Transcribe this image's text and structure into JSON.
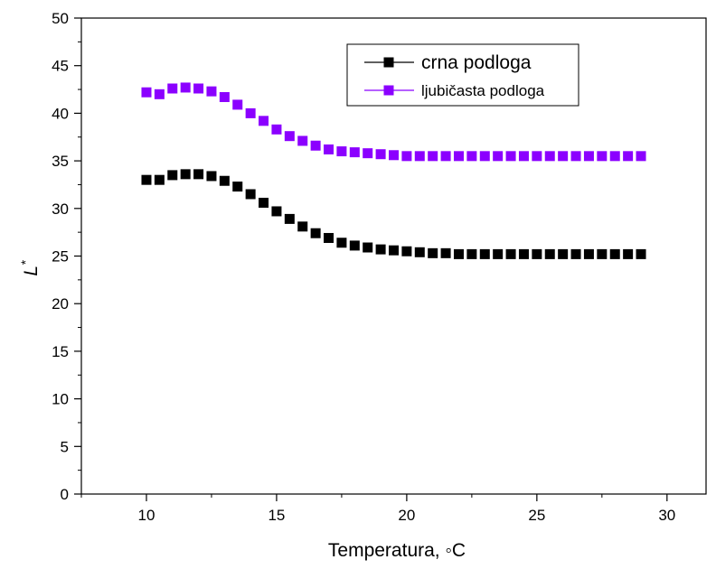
{
  "chart_data": {
    "type": "scatter",
    "title": "",
    "xlabel": "Temperatura, ◦C",
    "ylabel_main": "L",
    "ylabel_sup": "*",
    "xlim": [
      7.5,
      31.5
    ],
    "ylim": [
      0,
      50
    ],
    "x_ticks": [
      10,
      15,
      20,
      25,
      30
    ],
    "y_ticks": [
      0,
      5,
      10,
      15,
      20,
      25,
      30,
      35,
      40,
      45,
      50
    ],
    "grid": false,
    "legend_position": "top-right",
    "x": [
      10,
      10.5,
      11,
      11.5,
      12,
      12.5,
      13,
      13.5,
      14,
      14.5,
      15,
      15.5,
      16,
      16.5,
      17,
      17.5,
      18,
      18.5,
      19,
      19.5,
      20,
      20.5,
      21,
      21.5,
      22,
      22.5,
      23,
      23.5,
      24,
      24.5,
      25,
      25.5,
      26,
      26.5,
      27,
      27.5,
      28,
      28.5,
      29
    ],
    "series": [
      {
        "name": "crna podloga",
        "color": "#000000",
        "values": [
          33.0,
          33.0,
          33.5,
          33.6,
          33.6,
          33.4,
          32.9,
          32.3,
          31.5,
          30.6,
          29.7,
          28.9,
          28.1,
          27.4,
          26.9,
          26.4,
          26.1,
          25.9,
          25.7,
          25.6,
          25.5,
          25.4,
          25.3,
          25.3,
          25.2,
          25.2,
          25.2,
          25.2,
          25.2,
          25.2,
          25.2,
          25.2,
          25.2,
          25.2,
          25.2,
          25.2,
          25.2,
          25.2,
          25.2
        ]
      },
      {
        "name": "ljubičasta podloga",
        "color": "#8b00ff",
        "values": [
          42.2,
          42.0,
          42.6,
          42.7,
          42.6,
          42.3,
          41.7,
          40.9,
          40.0,
          39.2,
          38.3,
          37.6,
          37.1,
          36.6,
          36.2,
          36.0,
          35.9,
          35.8,
          35.7,
          35.6,
          35.5,
          35.5,
          35.5,
          35.5,
          35.5,
          35.5,
          35.5,
          35.5,
          35.5,
          35.5,
          35.5,
          35.5,
          35.5,
          35.5,
          35.5,
          35.5,
          35.5,
          35.5,
          35.5
        ]
      }
    ]
  }
}
